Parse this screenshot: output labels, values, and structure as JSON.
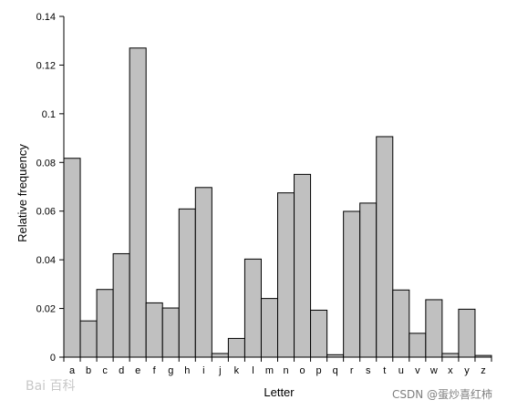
{
  "chart_data": {
    "type": "bar",
    "categories": [
      "a",
      "b",
      "c",
      "d",
      "e",
      "f",
      "g",
      "h",
      "i",
      "j",
      "k",
      "l",
      "m",
      "n",
      "o",
      "p",
      "q",
      "r",
      "s",
      "t",
      "u",
      "v",
      "w",
      "x",
      "y",
      "z"
    ],
    "values": [
      0.0817,
      0.0149,
      0.0278,
      0.0425,
      0.127,
      0.0223,
      0.0202,
      0.0609,
      0.0697,
      0.0015,
      0.0077,
      0.0403,
      0.0241,
      0.0675,
      0.0751,
      0.0193,
      0.001,
      0.0599,
      0.0633,
      0.0906,
      0.0276,
      0.0098,
      0.0236,
      0.0015,
      0.0197,
      0.0007
    ],
    "yticks": [
      "0",
      "0.02",
      "0.04",
      "0.06",
      "0.08",
      "0.1",
      "0.12",
      "0.14"
    ],
    "ylim": [
      0,
      0.14
    ],
    "xlabel": "Letter",
    "ylabel": "Relative frequency",
    "bar_color": "#c0c0c0",
    "grid": false
  },
  "watermarks": {
    "left": "Bai 百科",
    "right": "CSDN @蛋炒喜红柿"
  }
}
